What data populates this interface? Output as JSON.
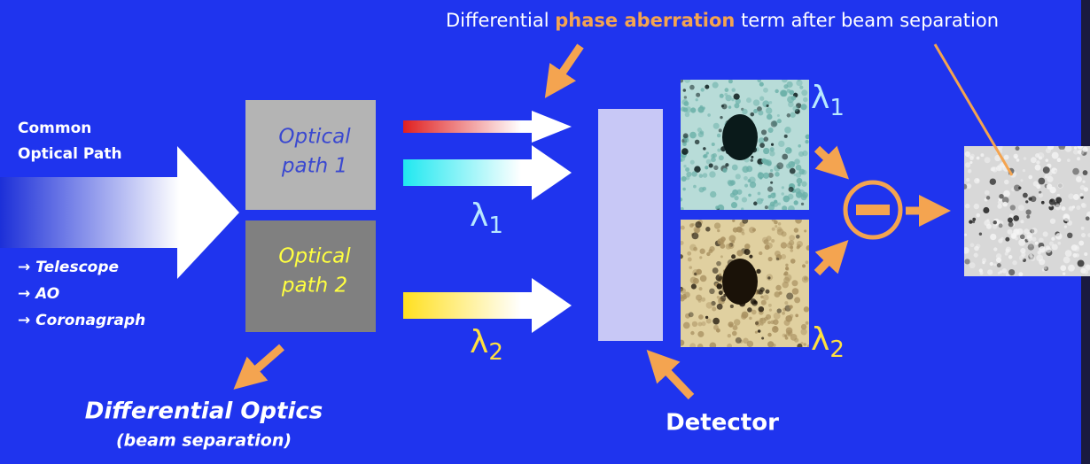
{
  "caption": {
    "before": "Differential ",
    "highlight": "phase aberration",
    "after": " term after beam separation"
  },
  "common_path": {
    "lines": [
      "Common",
      "Optical Path"
    ],
    "items": [
      "→ Telescope",
      "→ AO",
      "→ Coronagraph"
    ]
  },
  "optical_paths": [
    {
      "lines": [
        "Optical",
        "path 1"
      ]
    },
    {
      "lines": [
        "Optical",
        "path 2"
      ]
    }
  ],
  "wavelengths": [
    {
      "symbol": "λ",
      "subscript": "1"
    },
    {
      "symbol": "λ",
      "subscript": "2"
    },
    {
      "symbol": "λ",
      "subscript": "1"
    },
    {
      "symbol": "λ",
      "subscript": "2"
    }
  ],
  "differential_optics": {
    "title": "Differential Optics",
    "subtitle": "(beam separation)"
  },
  "detector": "Detector"
}
